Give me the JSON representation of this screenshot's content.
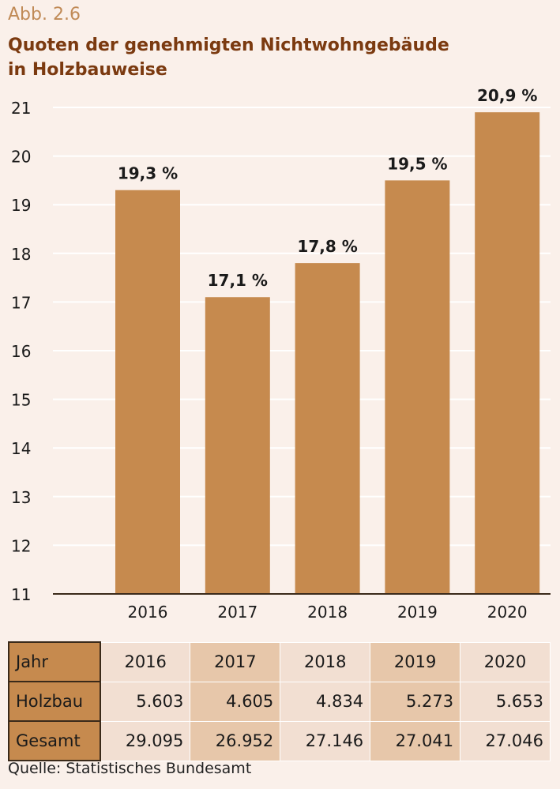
{
  "figure_label": "Abb. 2.6",
  "title_line1": "Quoten der genehmigten Nichtwohngebäude",
  "title_line2": "in Holzbauweise",
  "chart_data": {
    "type": "bar",
    "categories": [
      "2016",
      "2017",
      "2018",
      "2019",
      "2020"
    ],
    "values": [
      19.3,
      17.1,
      17.8,
      19.5,
      20.9
    ],
    "value_labels": [
      "19,3 %",
      "17,1 %",
      "17,8 %",
      "19,5 %",
      "20,9 %"
    ],
    "ylim": [
      11,
      21
    ],
    "yticks": [
      11,
      12,
      13,
      14,
      15,
      16,
      17,
      18,
      19,
      20,
      21
    ],
    "grid": true,
    "bar_color": "#c68a4e",
    "grid_color": "#ffffff"
  },
  "table": {
    "header": [
      "Jahr",
      "2016",
      "2017",
      "2018",
      "2019",
      "2020"
    ],
    "rows": [
      [
        "Holzbau",
        "5.603",
        "4.605",
        "4.834",
        "5.273",
        "5.653"
      ],
      [
        "Gesamt",
        "29.095",
        "26.952",
        "27.146",
        "27.041",
        "27.046"
      ]
    ]
  },
  "source": "Quelle: Statistisches Bundesamt",
  "colors": {
    "background": "#faf0ea",
    "title": "#7b3a10",
    "figure_label": "#c08a56",
    "bar": "#c68a4e"
  }
}
